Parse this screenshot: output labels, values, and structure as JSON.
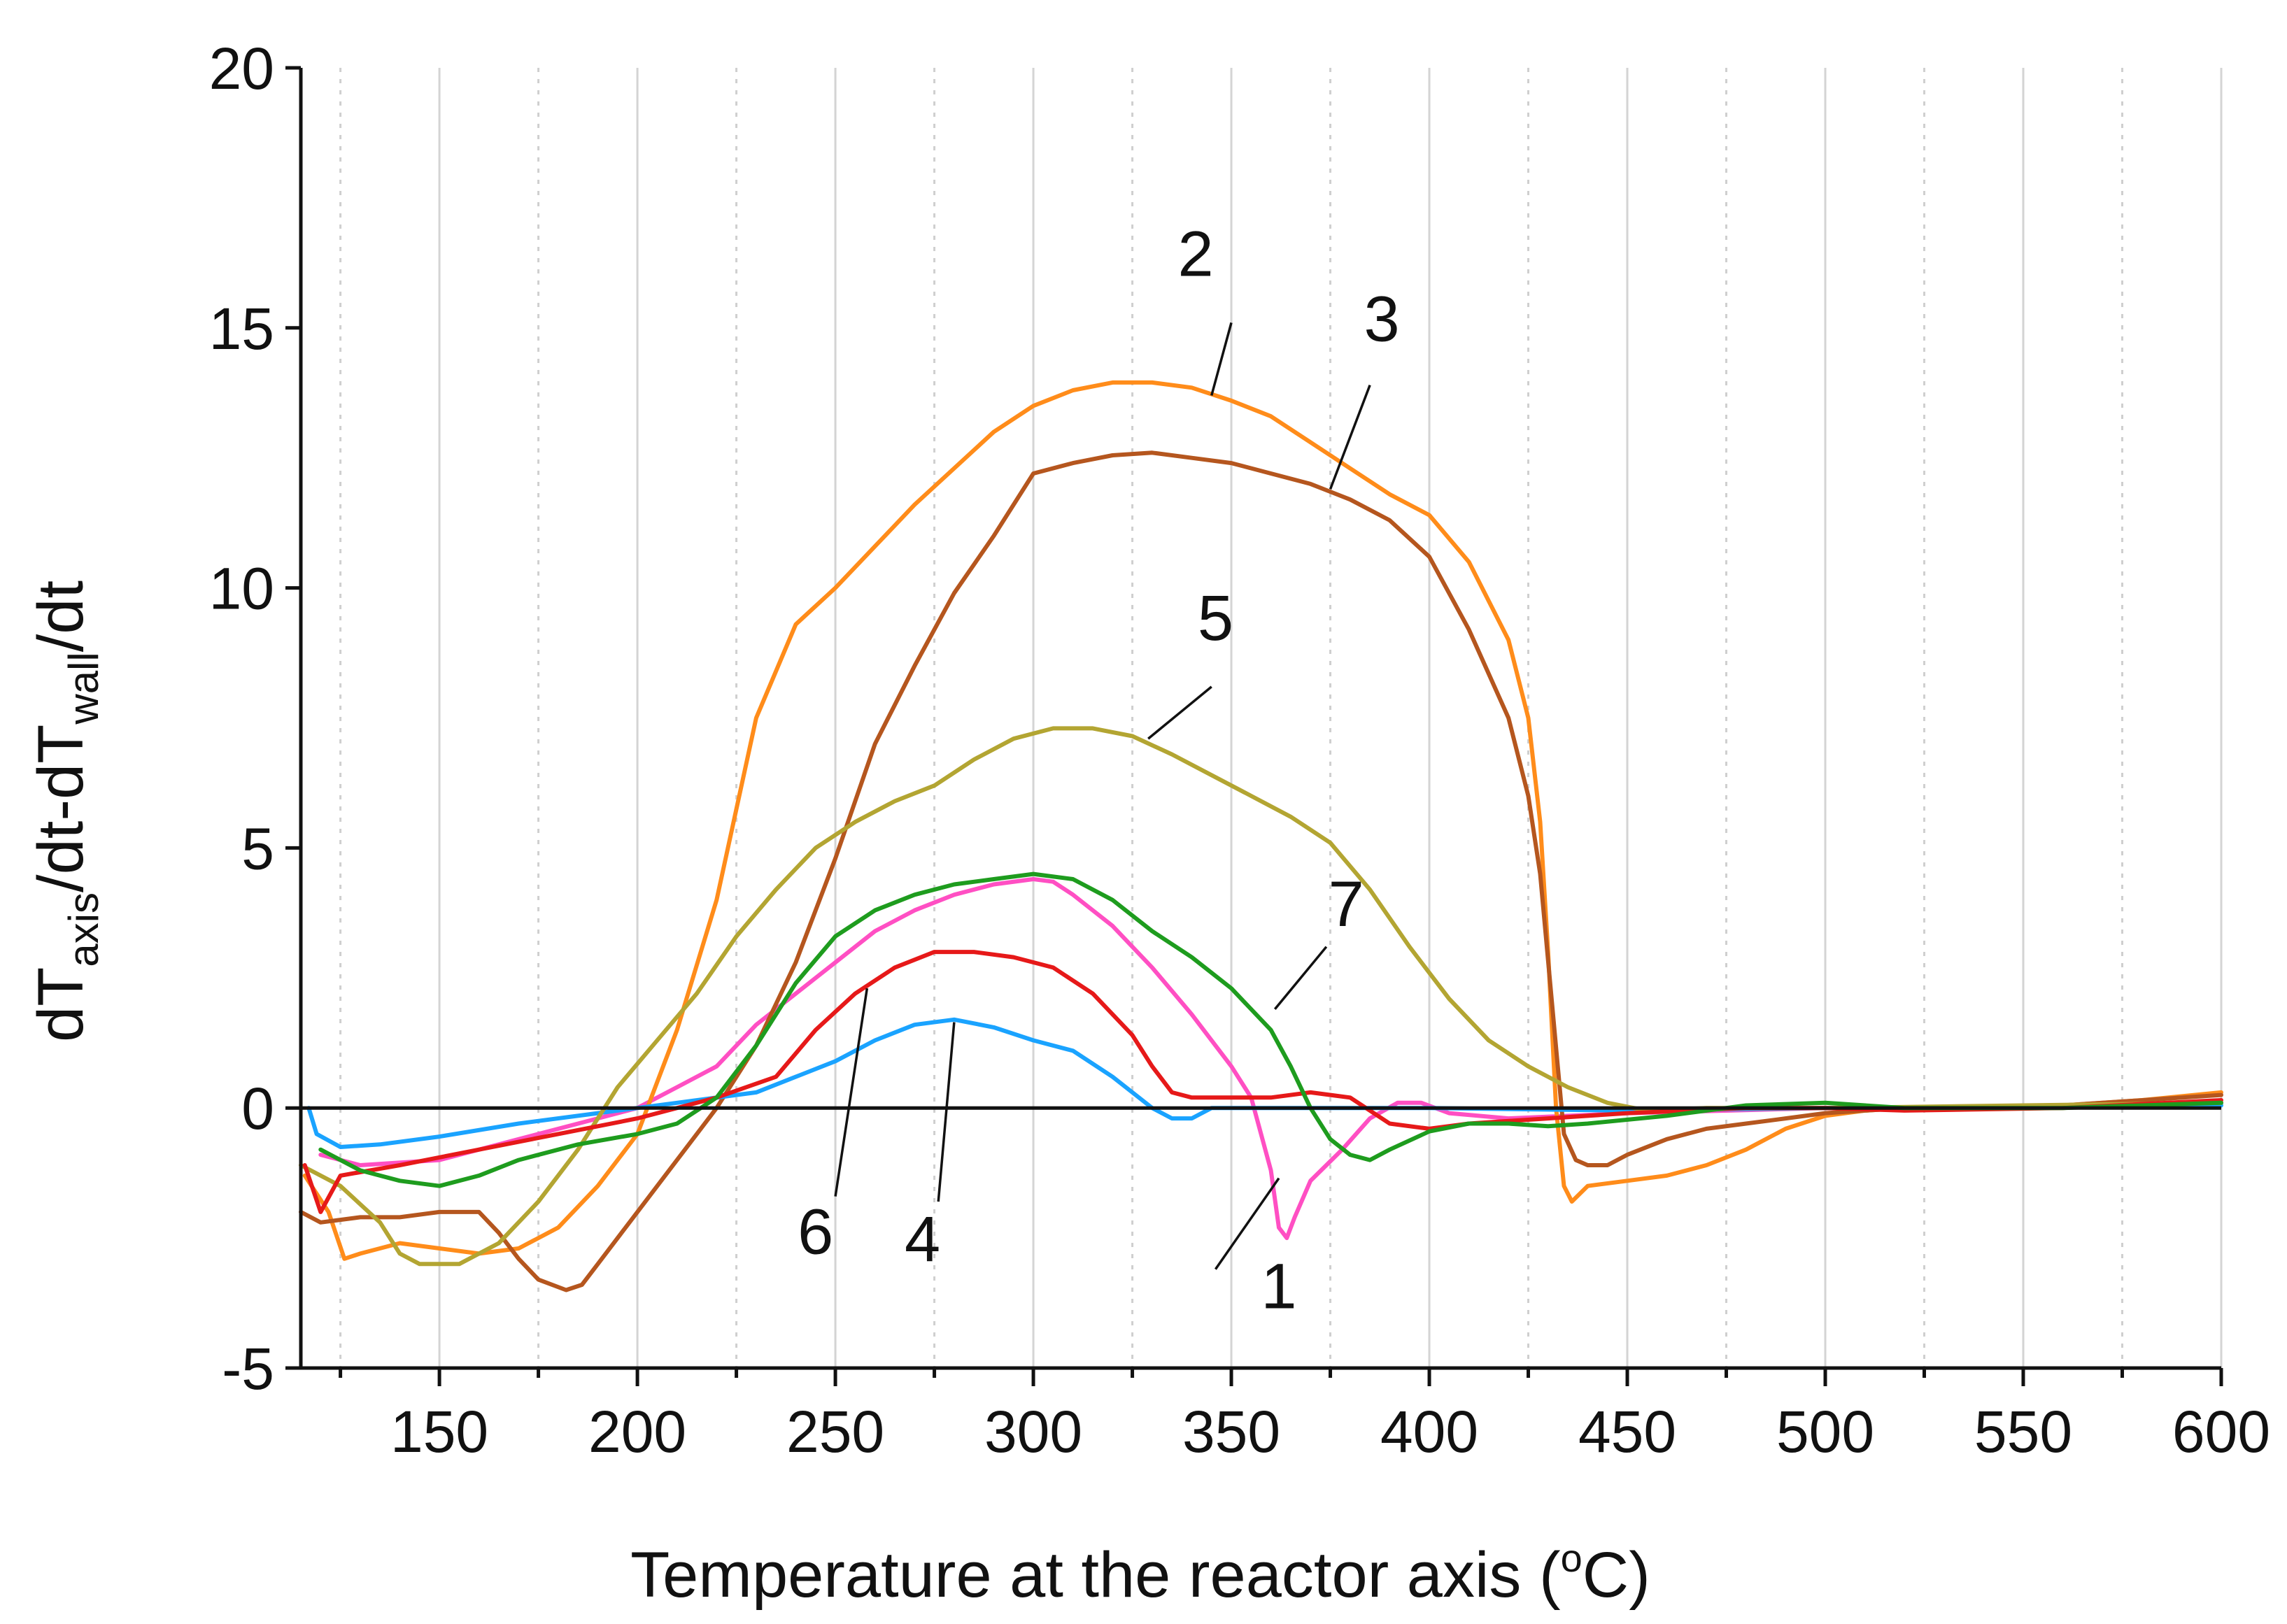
{
  "chart_data": {
    "type": "line",
    "title": "",
    "xlabel_main": "Temperature at the reactor axis (",
    "xlabel_sup": "o",
    "xlabel_end": "C)",
    "ylabel_parts": [
      "dT",
      "axis",
      "/dt-dT",
      "wall",
      "/dt"
    ],
    "xlim": [
      115,
      600
    ],
    "ylim": [
      -5,
      20
    ],
    "x_ticks": [
      150,
      200,
      250,
      300,
      350,
      400,
      450,
      500,
      550,
      600
    ],
    "x_tick_labels": [
      "150",
      "200",
      "250",
      "300",
      "350",
      "400",
      "450",
      "500",
      "550",
      "600"
    ],
    "x_minor_ticks": [
      125,
      175,
      225,
      275,
      325,
      375,
      425,
      475,
      525,
      575
    ],
    "y_ticks": [
      -5,
      0,
      5,
      10,
      15,
      20
    ],
    "y_tick_labels": [
      "-5",
      "0",
      "5",
      "10",
      "15",
      "20"
    ],
    "grid": "vertical",
    "legend": "none",
    "series": [
      {
        "name": "1",
        "color": "#ff4fc3",
        "points": [
          [
            120,
            -0.9
          ],
          [
            130,
            -1.1
          ],
          [
            150,
            -1.0
          ],
          [
            170,
            -0.6
          ],
          [
            190,
            -0.2
          ],
          [
            200,
            0.0
          ],
          [
            210,
            0.4
          ],
          [
            220,
            0.8
          ],
          [
            230,
            1.6
          ],
          [
            240,
            2.2
          ],
          [
            250,
            2.8
          ],
          [
            260,
            3.4
          ],
          [
            270,
            3.8
          ],
          [
            280,
            4.1
          ],
          [
            290,
            4.3
          ],
          [
            300,
            4.4
          ],
          [
            305,
            4.35
          ],
          [
            310,
            4.1
          ],
          [
            320,
            3.5
          ],
          [
            330,
            2.7
          ],
          [
            340,
            1.8
          ],
          [
            350,
            0.8
          ],
          [
            355,
            0.2
          ],
          [
            360,
            -1.2
          ],
          [
            362,
            -2.3
          ],
          [
            364,
            -2.5
          ],
          [
            366,
            -2.1
          ],
          [
            370,
            -1.4
          ],
          [
            378,
            -0.8
          ],
          [
            385,
            -0.2
          ],
          [
            392,
            0.1
          ],
          [
            398,
            0.1
          ],
          [
            405,
            -0.1
          ],
          [
            420,
            -0.2
          ],
          [
            450,
            -0.1
          ],
          [
            500,
            0.0
          ],
          [
            550,
            0.0
          ],
          [
            600,
            0.1
          ]
        ]
      },
      {
        "name": "2",
        "color": "#ff8c1a",
        "points": [
          [
            116,
            -1.3
          ],
          [
            122,
            -2.0
          ],
          [
            126,
            -2.9
          ],
          [
            130,
            -2.8
          ],
          [
            140,
            -2.6
          ],
          [
            150,
            -2.7
          ],
          [
            160,
            -2.8
          ],
          [
            170,
            -2.7
          ],
          [
            180,
            -2.3
          ],
          [
            190,
            -1.5
          ],
          [
            200,
            -0.5
          ],
          [
            210,
            1.5
          ],
          [
            220,
            4.0
          ],
          [
            230,
            7.5
          ],
          [
            240,
            9.3
          ],
          [
            250,
            10.0
          ],
          [
            260,
            10.8
          ],
          [
            270,
            11.6
          ],
          [
            280,
            12.3
          ],
          [
            290,
            13.0
          ],
          [
            300,
            13.5
          ],
          [
            310,
            13.8
          ],
          [
            320,
            13.95
          ],
          [
            330,
            13.95
          ],
          [
            340,
            13.85
          ],
          [
            350,
            13.6
          ],
          [
            360,
            13.3
          ],
          [
            370,
            12.8
          ],
          [
            380,
            12.3
          ],
          [
            390,
            11.8
          ],
          [
            400,
            11.4
          ],
          [
            410,
            10.5
          ],
          [
            420,
            9.0
          ],
          [
            425,
            7.5
          ],
          [
            428,
            5.5
          ],
          [
            430,
            3.0
          ],
          [
            432,
            0.0
          ],
          [
            434,
            -1.5
          ],
          [
            436,
            -1.8
          ],
          [
            440,
            -1.5
          ],
          [
            450,
            -1.4
          ],
          [
            460,
            -1.3
          ],
          [
            470,
            -1.1
          ],
          [
            480,
            -0.8
          ],
          [
            490,
            -0.4
          ],
          [
            500,
            -0.15
          ],
          [
            510,
            -0.05
          ],
          [
            520,
            0.0
          ],
          [
            560,
            0.05
          ],
          [
            580,
            0.15
          ],
          [
            600,
            0.3
          ]
        ]
      },
      {
        "name": "3",
        "color": "#b5561e",
        "points": [
          [
            115,
            -2.0
          ],
          [
            120,
            -2.2
          ],
          [
            130,
            -2.1
          ],
          [
            140,
            -2.1
          ],
          [
            150,
            -2.0
          ],
          [
            160,
            -2.0
          ],
          [
            165,
            -2.4
          ],
          [
            170,
            -2.9
          ],
          [
            175,
            -3.3
          ],
          [
            182,
            -3.5
          ],
          [
            186,
            -3.4
          ],
          [
            190,
            -3.0
          ],
          [
            200,
            -2.0
          ],
          [
            210,
            -1.0
          ],
          [
            220,
            0.0
          ],
          [
            230,
            1.2
          ],
          [
            240,
            2.8
          ],
          [
            250,
            4.8
          ],
          [
            260,
            7.0
          ],
          [
            270,
            8.5
          ],
          [
            280,
            9.9
          ],
          [
            290,
            11.0
          ],
          [
            300,
            12.2
          ],
          [
            310,
            12.4
          ],
          [
            320,
            12.55
          ],
          [
            330,
            12.6
          ],
          [
            340,
            12.5
          ],
          [
            350,
            12.4
          ],
          [
            360,
            12.2
          ],
          [
            370,
            12.0
          ],
          [
            380,
            11.7
          ],
          [
            390,
            11.3
          ],
          [
            400,
            10.6
          ],
          [
            410,
            9.2
          ],
          [
            420,
            7.5
          ],
          [
            425,
            6.0
          ],
          [
            428,
            4.5
          ],
          [
            431,
            2.0
          ],
          [
            434,
            -0.5
          ],
          [
            437,
            -1.0
          ],
          [
            440,
            -1.1
          ],
          [
            445,
            -1.1
          ],
          [
            450,
            -0.9
          ],
          [
            460,
            -0.6
          ],
          [
            470,
            -0.4
          ],
          [
            480,
            -0.3
          ],
          [
            490,
            -0.2
          ],
          [
            500,
            -0.1
          ],
          [
            520,
            0.0
          ],
          [
            560,
            0.05
          ],
          [
            600,
            0.25
          ]
        ]
      },
      {
        "name": "4",
        "color": "#1aa3ff",
        "points": [
          [
            117,
            0.0
          ],
          [
            119,
            -0.5
          ],
          [
            125,
            -0.75
          ],
          [
            135,
            -0.7
          ],
          [
            150,
            -0.55
          ],
          [
            170,
            -0.3
          ],
          [
            190,
            -0.1
          ],
          [
            210,
            0.1
          ],
          [
            230,
            0.3
          ],
          [
            240,
            0.6
          ],
          [
            250,
            0.9
          ],
          [
            260,
            1.3
          ],
          [
            270,
            1.6
          ],
          [
            280,
            1.7
          ],
          [
            290,
            1.55
          ],
          [
            300,
            1.3
          ],
          [
            310,
            1.1
          ],
          [
            320,
            0.6
          ],
          [
            330,
            0.0
          ],
          [
            335,
            -0.2
          ],
          [
            340,
            -0.2
          ],
          [
            345,
            0.0
          ],
          [
            360,
            0.0
          ],
          [
            400,
            0.0
          ],
          [
            450,
            -0.05
          ],
          [
            500,
            0.0
          ],
          [
            600,
            0.05
          ]
        ]
      },
      {
        "name": "5",
        "color": "#b3a532",
        "points": [
          [
            115,
            -1.1
          ],
          [
            125,
            -1.5
          ],
          [
            135,
            -2.2
          ],
          [
            140,
            -2.8
          ],
          [
            145,
            -3.0
          ],
          [
            155,
            -3.0
          ],
          [
            165,
            -2.6
          ],
          [
            175,
            -1.8
          ],
          [
            185,
            -0.8
          ],
          [
            195,
            0.4
          ],
          [
            205,
            1.3
          ],
          [
            215,
            2.2
          ],
          [
            225,
            3.3
          ],
          [
            235,
            4.2
          ],
          [
            245,
            5.0
          ],
          [
            255,
            5.5
          ],
          [
            265,
            5.9
          ],
          [
            275,
            6.2
          ],
          [
            285,
            6.7
          ],
          [
            295,
            7.1
          ],
          [
            305,
            7.3
          ],
          [
            315,
            7.3
          ],
          [
            325,
            7.15
          ],
          [
            335,
            6.8
          ],
          [
            345,
            6.4
          ],
          [
            355,
            6.0
          ],
          [
            365,
            5.6
          ],
          [
            375,
            5.1
          ],
          [
            385,
            4.2
          ],
          [
            395,
            3.1
          ],
          [
            405,
            2.1
          ],
          [
            415,
            1.3
          ],
          [
            425,
            0.8
          ],
          [
            435,
            0.4
          ],
          [
            445,
            0.1
          ],
          [
            455,
            -0.05
          ],
          [
            470,
            0.0
          ],
          [
            500,
            0.0
          ],
          [
            550,
            0.05
          ],
          [
            600,
            0.1
          ]
        ]
      },
      {
        "name": "6",
        "color": "#e61919",
        "points": [
          [
            116,
            -1.1
          ],
          [
            120,
            -2.0
          ],
          [
            125,
            -1.3
          ],
          [
            140,
            -1.1
          ],
          [
            160,
            -0.8
          ],
          [
            180,
            -0.5
          ],
          [
            200,
            -0.2
          ],
          [
            220,
            0.2
          ],
          [
            235,
            0.6
          ],
          [
            245,
            1.5
          ],
          [
            255,
            2.2
          ],
          [
            265,
            2.7
          ],
          [
            275,
            3.0
          ],
          [
            285,
            3.0
          ],
          [
            295,
            2.9
          ],
          [
            305,
            2.7
          ],
          [
            315,
            2.2
          ],
          [
            325,
            1.4
          ],
          [
            330,
            0.8
          ],
          [
            335,
            0.3
          ],
          [
            340,
            0.2
          ],
          [
            350,
            0.2
          ],
          [
            360,
            0.2
          ],
          [
            370,
            0.3
          ],
          [
            380,
            0.2
          ],
          [
            390,
            -0.3
          ],
          [
            400,
            -0.4
          ],
          [
            410,
            -0.3
          ],
          [
            430,
            -0.2
          ],
          [
            450,
            -0.1
          ],
          [
            480,
            0.0
          ],
          [
            500,
            0.0
          ],
          [
            520,
            -0.05
          ],
          [
            560,
            0.0
          ],
          [
            600,
            0.15
          ]
        ]
      },
      {
        "name": "7",
        "color": "#1e9c1e",
        "points": [
          [
            120,
            -0.8
          ],
          [
            130,
            -1.2
          ],
          [
            140,
            -1.4
          ],
          [
            150,
            -1.5
          ],
          [
            160,
            -1.3
          ],
          [
            170,
            -1.0
          ],
          [
            185,
            -0.7
          ],
          [
            200,
            -0.5
          ],
          [
            210,
            -0.3
          ],
          [
            220,
            0.2
          ],
          [
            230,
            1.2
          ],
          [
            240,
            2.4
          ],
          [
            250,
            3.3
          ],
          [
            260,
            3.8
          ],
          [
            270,
            4.1
          ],
          [
            280,
            4.3
          ],
          [
            290,
            4.4
          ],
          [
            300,
            4.5
          ],
          [
            310,
            4.4
          ],
          [
            320,
            4.0
          ],
          [
            330,
            3.4
          ],
          [
            340,
            2.9
          ],
          [
            350,
            2.3
          ],
          [
            360,
            1.5
          ],
          [
            365,
            0.8
          ],
          [
            370,
            0.0
          ],
          [
            375,
            -0.6
          ],
          [
            380,
            -0.9
          ],
          [
            385,
            -1.0
          ],
          [
            390,
            -0.8
          ],
          [
            400,
            -0.45
          ],
          [
            410,
            -0.3
          ],
          [
            420,
            -0.3
          ],
          [
            430,
            -0.35
          ],
          [
            440,
            -0.3
          ],
          [
            460,
            -0.15
          ],
          [
            480,
            0.05
          ],
          [
            500,
            0.1
          ],
          [
            520,
            0.0
          ],
          [
            560,
            0.0
          ],
          [
            600,
            0.1
          ]
        ]
      }
    ],
    "annotations": [
      {
        "text": "1",
        "label_x": 362,
        "label_y": -3.85,
        "tip_x": 362,
        "tip_y": -1.35,
        "tail_x": 346,
        "tail_y": -3.1
      },
      {
        "text": "2",
        "label_x": 341,
        "label_y": 16.0,
        "tip_x": 345,
        "tip_y": 13.7,
        "tail_x": 350,
        "tail_y": 15.1
      },
      {
        "text": "3",
        "label_x": 388,
        "label_y": 14.75,
        "tip_x": 375,
        "tip_y": 11.9,
        "tail_x": 385,
        "tail_y": 13.9
      },
      {
        "text": "4",
        "label_x": 272,
        "label_y": -2.95,
        "tip_x": 280,
        "tip_y": 1.65,
        "tail_x": 276,
        "tail_y": -1.8
      },
      {
        "text": "5",
        "label_x": 346,
        "label_y": 9.0,
        "tip_x": 329,
        "tip_y": 7.1,
        "tail_x": 345,
        "tail_y": 8.1
      },
      {
        "text": "6",
        "label_x": 245,
        "label_y": -2.8,
        "tip_x": 258,
        "tip_y": 2.3,
        "tail_x": 250,
        "tail_y": -1.7
      },
      {
        "text": "7",
        "label_x": 379,
        "label_y": 3.5,
        "tip_x": 361,
        "tip_y": 1.9,
        "tail_x": 374,
        "tail_y": 3.1
      }
    ]
  }
}
